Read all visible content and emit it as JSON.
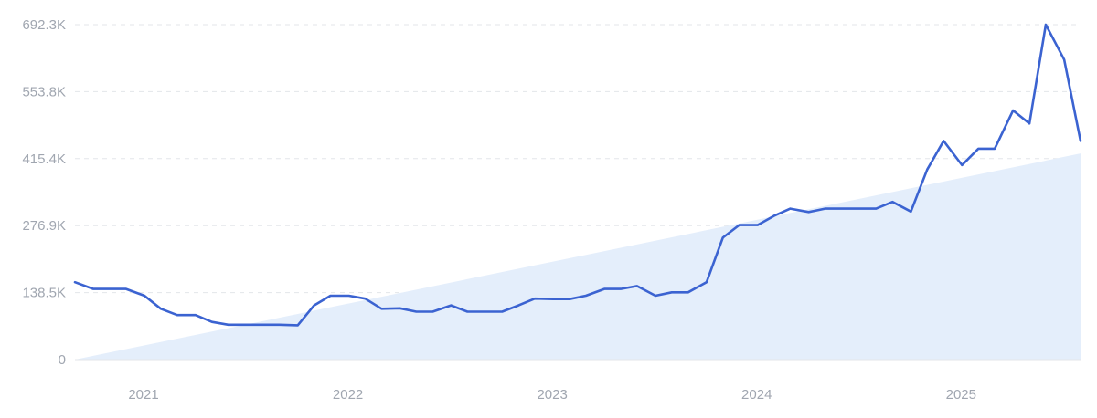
{
  "chart_data": {
    "type": "line",
    "title": "",
    "xlabel": "",
    "ylabel": "",
    "y_ticks": [
      "0",
      "138.5K",
      "276.9K",
      "415.4K",
      "553.8K",
      "692.3K"
    ],
    "y_tick_values": [
      0,
      138500,
      276900,
      415400,
      553800,
      692300
    ],
    "ylim": [
      0,
      692300
    ],
    "x_ticks": [
      "2021",
      "2022",
      "2023",
      "2024",
      "2025"
    ],
    "x_tick_positions": [
      2021.0,
      2022.0,
      2023.0,
      2024.0,
      2025.0
    ],
    "xlim": [
      2020.83,
      2025.75
    ],
    "grid": true,
    "colors": {
      "line": "#3b63d1",
      "trend_fill": "#e4eefb",
      "grid": "#e3e6ea",
      "tick_text": "#a0a6b0"
    },
    "trend_area": {
      "start": [
        2020.83,
        0
      ],
      "end": [
        2025.75,
        426000
      ]
    },
    "series": [
      {
        "name": "",
        "x": [
          2020.83,
          2020.92,
          2021.0,
          2021.08,
          2021.17,
          2021.25,
          2021.33,
          2021.42,
          2021.5,
          2021.58,
          2021.67,
          2021.75,
          2021.83,
          2021.92,
          2022.0,
          2022.08,
          2022.17,
          2022.25,
          2022.33,
          2022.42,
          2022.5,
          2022.58,
          2022.67,
          2022.75,
          2022.83,
          2022.92,
          2023.0,
          2023.08,
          2023.17,
          2023.25,
          2023.33,
          2023.42,
          2023.5,
          2023.58,
          2023.67,
          2023.75,
          2023.83,
          2023.92,
          2024.0,
          2024.08,
          2024.17,
          2024.25,
          2024.33,
          2024.42,
          2024.5,
          2024.58,
          2024.67,
          2024.75,
          2024.83,
          2024.92,
          2025.0,
          2025.08,
          2025.17,
          2025.25,
          2025.33,
          2025.42,
          2025.5,
          2025.58,
          2025.67,
          2025.75
        ],
        "values": [
          160000,
          146000,
          146000,
          146000,
          132000,
          105000,
          92000,
          92000,
          78000,
          72000,
          72000,
          72000,
          72000,
          71000,
          112000,
          132000,
          132000,
          126000,
          105000,
          106000,
          99000,
          99000,
          112000,
          99000,
          99000,
          99000,
          112000,
          126000,
          125000,
          125000,
          132000,
          146000,
          146000,
          152000,
          132000,
          139000,
          139000,
          160000,
          252000,
          278000,
          278000,
          297000,
          312000,
          305000,
          312000,
          312000,
          312000,
          312000,
          326000,
          306000,
          393000,
          452000,
          402000,
          436000,
          436000,
          515000,
          488000,
          692300,
          620000,
          452000
        ]
      }
    ]
  }
}
